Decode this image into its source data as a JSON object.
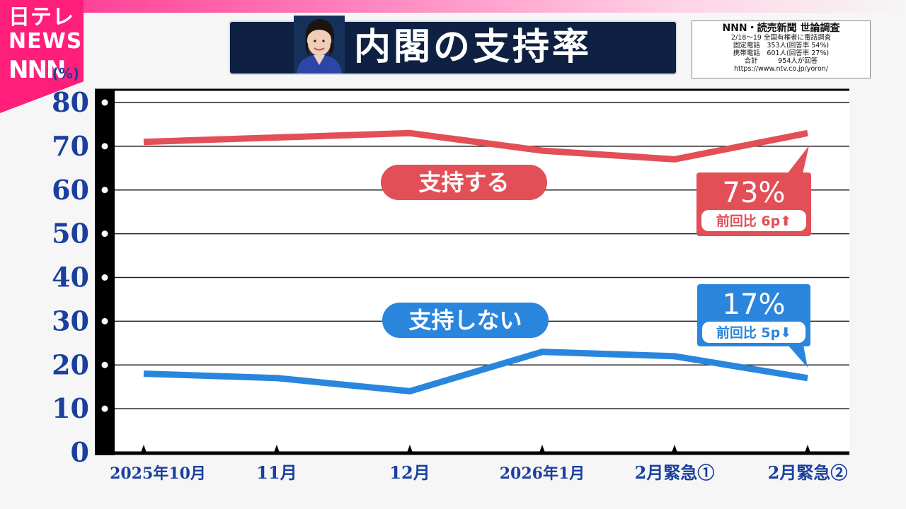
{
  "logo": {
    "line1": "日テレ",
    "line2": "NEWS",
    "line3": "NNN"
  },
  "header": {
    "title": "内閣の支持率"
  },
  "survey": {
    "title": "NNN・読売新聞 世論調査",
    "lines": [
      "2/18～19 全国有権者に電話調査",
      "固定電話　353人(回答率 54%)",
      "携帯電話　601人(回答率 27%)",
      "合計　　　954人が回答",
      "https://www.ntv.co.jp/yoron/"
    ]
  },
  "chart_data": {
    "type": "line",
    "unit": "(%)",
    "categories": [
      "2025年10月",
      "11月",
      "12月",
      "2026年1月",
      "2月緊急①",
      "2月緊急②"
    ],
    "ylim": [
      0,
      80
    ],
    "yticks": [
      "0",
      "10",
      "20",
      "30",
      "40",
      "50",
      "60",
      "70",
      "80"
    ],
    "grid": true,
    "series": [
      {
        "name": "支持する",
        "color": "#e24f57",
        "values": [
          71,
          72,
          73,
          69,
          67,
          73
        ]
      },
      {
        "name": "支持しない",
        "color": "#2a86dd",
        "values": [
          18,
          17,
          14,
          23,
          22,
          17
        ]
      }
    ],
    "callouts": [
      {
        "series": "支持する",
        "value_text": "73%",
        "change_text": "前回比 6p⬆",
        "color": "#e24f57"
      },
      {
        "series": "支持しない",
        "value_text": "17%",
        "change_text": "前回比 5p⬇",
        "color": "#2a86dd"
      }
    ]
  }
}
